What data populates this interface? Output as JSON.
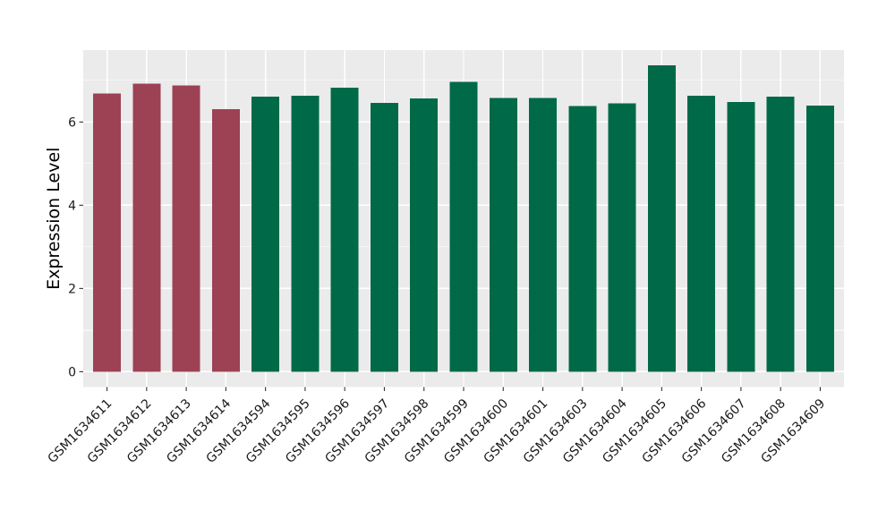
{
  "figure": {
    "background": "#FFFFFF",
    "panel_background": "#EBEBEB",
    "grid_color": "#FFFFFF",
    "tick_mark_color": "#333333",
    "axis_text_color": "#1A1A1A",
    "axis_title_color": "#000000"
  },
  "chart_data": {
    "type": "bar",
    "title": "",
    "xlabel": "",
    "ylabel": "Expression Level",
    "categories": [
      "GSM1634611",
      "GSM1634612",
      "GSM1634613",
      "GSM1634614",
      "GSM1634594",
      "GSM1634595",
      "GSM1634596",
      "GSM1634597",
      "GSM1634598",
      "GSM1634599",
      "GSM1634600",
      "GSM1634601",
      "GSM1634603",
      "GSM1634604",
      "GSM1634605",
      "GSM1634606",
      "GSM1634607",
      "GSM1634608",
      "GSM1634609"
    ],
    "values": [
      6.68,
      6.92,
      6.88,
      6.31,
      6.61,
      6.63,
      6.82,
      6.46,
      6.57,
      6.97,
      6.58,
      6.58,
      6.38,
      6.45,
      7.36,
      6.63,
      6.48,
      6.61,
      6.4
    ],
    "bar_colors": [
      "#9C4254",
      "#9C4254",
      "#9C4254",
      "#9C4254",
      "#006948",
      "#006948",
      "#006948",
      "#006948",
      "#006948",
      "#006948",
      "#006948",
      "#006948",
      "#006948",
      "#006948",
      "#006948",
      "#006948",
      "#006948",
      "#006948",
      "#006948"
    ],
    "y_major_ticks": [
      0,
      2,
      4,
      6
    ],
    "y_minor_gridlines": [
      1,
      3,
      5,
      7
    ],
    "ylim": [
      0,
      7.36
    ],
    "x_tick_rotation": 45,
    "grid": true,
    "legend": false
  }
}
